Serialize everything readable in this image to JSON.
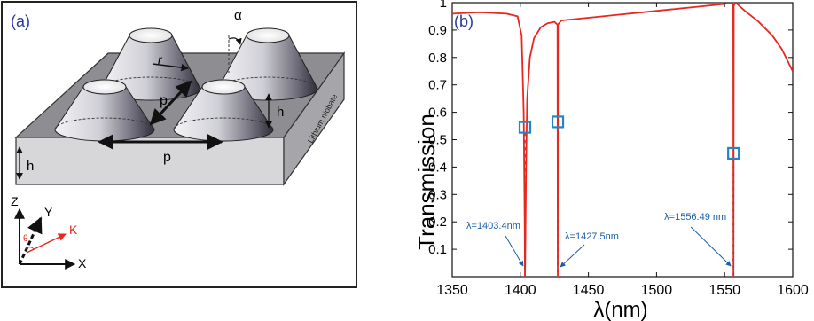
{
  "figure": {
    "panel_a": {
      "label": "(a)",
      "substrate_label": "Lithium niobate",
      "params": {
        "alpha": "α",
        "r": "r",
        "p": "p",
        "h": "h"
      },
      "axes": {
        "z": "Z",
        "y": "Y",
        "x": "X",
        "k": "K",
        "theta": "θ"
      }
    },
    "panel_b": {
      "label": "(b)"
    }
  },
  "colors": {
    "curve": "#e8271e",
    "marker": "#1f86c8",
    "annotation": "#1a5ea8",
    "panel_label": "#2a3a9a"
  },
  "chart_data": {
    "type": "line",
    "title": "",
    "xlabel": "λ(nm)",
    "ylabel": "Transmission",
    "xlim": [
      1350,
      1600
    ],
    "ylim": [
      0,
      1
    ],
    "xticks": [
      1350,
      1400,
      1450,
      1500,
      1550,
      1600
    ],
    "yticks": [
      0.1,
      0.2,
      0.3,
      0.4,
      0.5,
      0.6,
      0.7,
      0.8,
      0.9,
      1
    ],
    "grid": false,
    "series": [
      {
        "x": [
          1350,
          1370,
          1390,
          1398,
          1401,
          1402.5,
          1403.2,
          1403.4,
          1403.6,
          1404.2,
          1405,
          1407,
          1410,
          1415,
          1420,
          1425,
          1427.3,
          1427.5,
          1427.7,
          1430,
          1450,
          1470,
          1490,
          1510,
          1530,
          1550,
          1555,
          1556.3,
          1556.49,
          1556.7,
          1558,
          1565,
          1575,
          1585,
          1592,
          1600
        ],
        "y": [
          0.96,
          0.965,
          0.96,
          0.95,
          0.88,
          0.6,
          0.2,
          0.0,
          0.05,
          0.4,
          0.65,
          0.8,
          0.87,
          0.91,
          0.925,
          0.93,
          0.92,
          0.0,
          0.92,
          0.935,
          0.945,
          0.955,
          0.965,
          0.975,
          0.985,
          0.995,
          1.0,
          0.99,
          0.0,
          0.99,
          1.0,
          0.97,
          0.93,
          0.88,
          0.83,
          0.75
        ]
      }
    ],
    "markers": [
      {
        "x": 1403.4,
        "y": 0.545
      },
      {
        "x": 1427.5,
        "y": 0.565
      },
      {
        "x": 1556.49,
        "y": 0.45
      }
    ],
    "annotations": [
      {
        "text": "λ=1403.4nm",
        "x": 1403.4
      },
      {
        "text": "λ=1427.5nm",
        "x": 1427.5
      },
      {
        "text": "λ=1556.49 nm",
        "x": 1556.49
      }
    ]
  }
}
